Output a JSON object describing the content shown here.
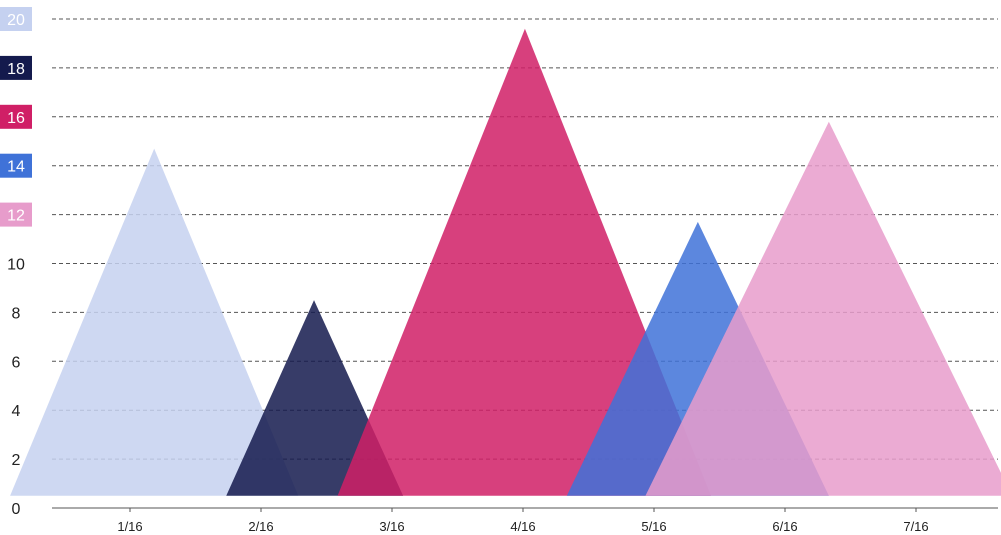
{
  "chart_data": {
    "type": "area",
    "title": "",
    "xlabel": "",
    "ylabel": "",
    "ylim": [
      0,
      20
    ],
    "grid": true,
    "categories": [
      "1/16",
      "2/16",
      "3/16",
      "4/16",
      "5/16",
      "6/16",
      "7/16"
    ],
    "y_ticks": [
      {
        "label": "20",
        "value": 20,
        "badge_color": "#c5d1f0",
        "text_color": "#ffffff"
      },
      {
        "label": "18",
        "value": 18,
        "badge_color": "#141a4d",
        "text_color": "#ffffff"
      },
      {
        "label": "16",
        "value": 16,
        "badge_color": "#d01f66",
        "text_color": "#ffffff"
      },
      {
        "label": "14",
        "value": 14,
        "badge_color": "#3f72d8",
        "text_color": "#ffffff"
      },
      {
        "label": "12",
        "value": 12,
        "badge_color": "#e79ccb",
        "text_color": "#ffffff"
      },
      {
        "label": "10",
        "value": 10,
        "badge_color": "",
        "text_color": "#222222"
      },
      {
        "label": "8",
        "value": 8,
        "badge_color": "",
        "text_color": "#222222"
      },
      {
        "label": "6",
        "value": 6,
        "badge_color": "",
        "text_color": "#222222"
      },
      {
        "label": "4",
        "value": 4,
        "badge_color": "",
        "text_color": "#222222"
      },
      {
        "label": "2",
        "value": 2,
        "badge_color": "",
        "text_color": "#222222"
      },
      {
        "label": "0",
        "value": 0,
        "badge_color": "",
        "text_color": "#222222"
      }
    ],
    "series": [
      {
        "peak_x": 1.2,
        "x_start": 0.1,
        "x_end": 2.3,
        "value": 14.7,
        "color": "#c5d1f0"
      },
      {
        "peak_x": 2.42,
        "x_start": 1.75,
        "x_end": 3.1,
        "value": 8.5,
        "color": "#141a4d"
      },
      {
        "peak_x": 4.03,
        "x_start": 2.6,
        "x_end": 5.45,
        "value": 19.6,
        "color": "#d01f66"
      },
      {
        "peak_x": 5.35,
        "x_start": 4.35,
        "x_end": 6.35,
        "value": 11.7,
        "color": "#3f72d8"
      },
      {
        "peak_x": 6.35,
        "x_start": 4.95,
        "x_end": 7.75,
        "value": 15.8,
        "color": "#e79ccb"
      }
    ]
  }
}
